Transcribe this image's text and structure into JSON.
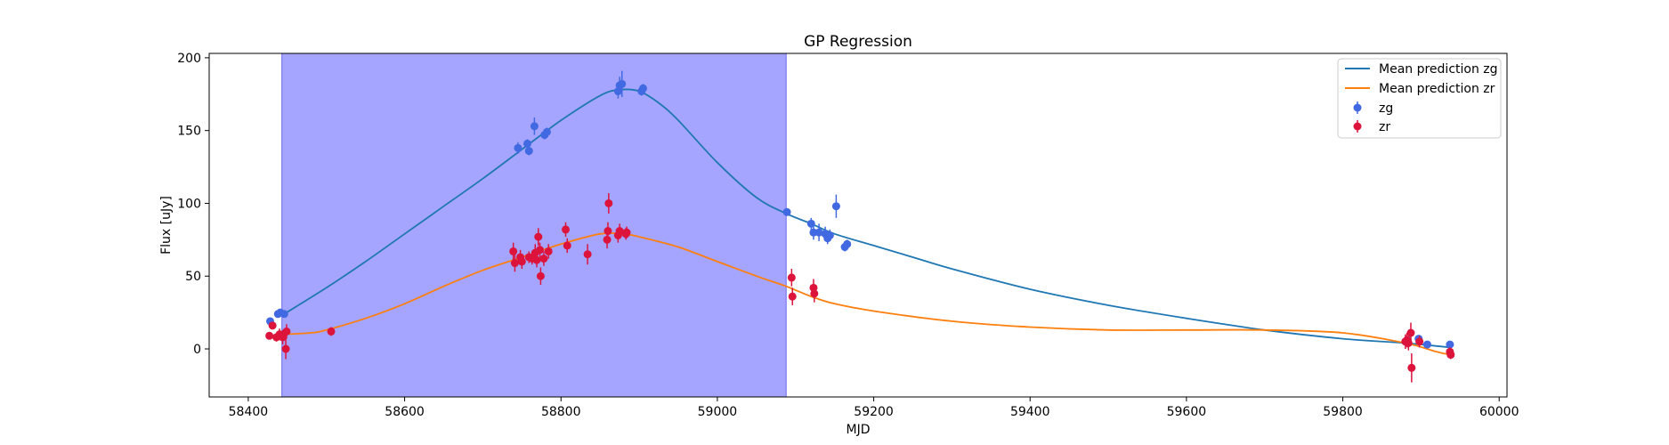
{
  "chart_data": {
    "type": "scatter",
    "title": "GP Regression",
    "xlabel": "MJD",
    "ylabel": "Flux [uJy]",
    "xlim": [
      58350,
      60010
    ],
    "ylim": [
      -33,
      203
    ],
    "xticks": [
      58400,
      58600,
      58800,
      59000,
      59200,
      59400,
      59600,
      59800,
      60000
    ],
    "yticks": [
      0,
      50,
      100,
      150,
      200
    ],
    "grid": false,
    "legend_position": "top-right",
    "shaded_region": {
      "x_start": 58443,
      "x_end": 59088,
      "color": "#a5a5ff"
    },
    "lines": [
      {
        "name": "Mean prediction zg",
        "color": "#1f77b4",
        "x": [
          58443,
          58500,
          58550,
          58600,
          58650,
          58700,
          58750,
          58800,
          58850,
          58875,
          58900,
          58925,
          58950,
          59000,
          59050,
          59088,
          59120,
          59150,
          59200,
          59250,
          59300,
          59400,
          59500,
          59600,
          59700,
          59800,
          59880,
          59920,
          59937
        ],
        "y": [
          23,
          42,
          60,
          79,
          98,
          117,
          137,
          157,
          174,
          178,
          177,
          169,
          157,
          128,
          104,
          93,
          86,
          79,
          71,
          63,
          55,
          41,
          30,
          21,
          13,
          7,
          4,
          2,
          1
        ]
      },
      {
        "name": "Mean prediction zr",
        "color": "#ff7f0e",
        "x": [
          58443,
          58480,
          58500,
          58550,
          58600,
          58650,
          58700,
          58750,
          58800,
          58850,
          58880,
          58900,
          58950,
          59000,
          59050,
          59088,
          59120,
          59150,
          59200,
          59300,
          59400,
          59500,
          59600,
          59700,
          59800,
          59880,
          59920,
          59937
        ],
        "y": [
          10,
          11,
          13,
          21,
          31,
          43,
          54,
          63,
          72,
          79,
          79,
          77,
          70,
          60,
          50,
          43,
          36,
          31,
          26,
          19,
          15,
          13,
          13,
          13,
          11,
          4,
          -2,
          -4
        ]
      }
    ],
    "series": [
      {
        "name": "zg",
        "color": "#4169e1",
        "points": [
          {
            "x": 58428,
            "y": 19,
            "err": 1
          },
          {
            "x": 58438,
            "y": 24,
            "err": 2
          },
          {
            "x": 58441,
            "y": 25,
            "err": 2
          },
          {
            "x": 58446,
            "y": 24,
            "err": 2
          },
          {
            "x": 58745,
            "y": 138,
            "err": 4
          },
          {
            "x": 58757,
            "y": 141,
            "err": 3
          },
          {
            "x": 58759,
            "y": 136,
            "err": 3
          },
          {
            "x": 58766,
            "y": 153,
            "err": 6
          },
          {
            "x": 58779,
            "y": 147,
            "err": 3
          },
          {
            "x": 58782,
            "y": 149,
            "err": 3
          },
          {
            "x": 58873,
            "y": 177,
            "err": 5
          },
          {
            "x": 58875,
            "y": 181,
            "err": 6
          },
          {
            "x": 58878,
            "y": 182,
            "err": 9
          },
          {
            "x": 58903,
            "y": 177,
            "err": 3
          },
          {
            "x": 58905,
            "y": 179,
            "err": 3
          },
          {
            "x": 59089,
            "y": 94,
            "err": 2
          },
          {
            "x": 59120,
            "y": 86,
            "err": 4
          },
          {
            "x": 59123,
            "y": 80,
            "err": 5
          },
          {
            "x": 59130,
            "y": 80,
            "err": 6
          },
          {
            "x": 59138,
            "y": 79,
            "err": 5
          },
          {
            "x": 59141,
            "y": 76,
            "err": 4
          },
          {
            "x": 59144,
            "y": 78,
            "err": 4
          },
          {
            "x": 59152,
            "y": 98,
            "err": 8
          },
          {
            "x": 59163,
            "y": 70,
            "err": 3
          },
          {
            "x": 59166,
            "y": 72,
            "err": 3
          },
          {
            "x": 59883,
            "y": 6,
            "err": 2
          },
          {
            "x": 59897,
            "y": 7,
            "err": 2
          },
          {
            "x": 59908,
            "y": 3,
            "err": 2
          },
          {
            "x": 59937,
            "y": 3,
            "err": 2
          }
        ]
      },
      {
        "name": "zr",
        "color": "#dc143c",
        "points": [
          {
            "x": 58427,
            "y": 9,
            "err": 2
          },
          {
            "x": 58431,
            "y": 16,
            "err": 2
          },
          {
            "x": 58436,
            "y": 8,
            "err": 3
          },
          {
            "x": 58440,
            "y": 10,
            "err": 4
          },
          {
            "x": 58444,
            "y": 8,
            "err": 5
          },
          {
            "x": 58448,
            "y": 0,
            "err": 7
          },
          {
            "x": 58449,
            "y": 12,
            "err": 5
          },
          {
            "x": 58506,
            "y": 12,
            "err": 3
          },
          {
            "x": 58739,
            "y": 67,
            "err": 6
          },
          {
            "x": 58741,
            "y": 59,
            "err": 6
          },
          {
            "x": 58748,
            "y": 63,
            "err": 5
          },
          {
            "x": 58750,
            "y": 60,
            "err": 5
          },
          {
            "x": 58759,
            "y": 63,
            "err": 4
          },
          {
            "x": 58763,
            "y": 62,
            "err": 4
          },
          {
            "x": 58767,
            "y": 66,
            "err": 6
          },
          {
            "x": 58769,
            "y": 61,
            "err": 5
          },
          {
            "x": 58771,
            "y": 77,
            "err": 6
          },
          {
            "x": 58773,
            "y": 68,
            "err": 5
          },
          {
            "x": 58774,
            "y": 50,
            "err": 6
          },
          {
            "x": 58778,
            "y": 62,
            "err": 5
          },
          {
            "x": 58784,
            "y": 67,
            "err": 5
          },
          {
            "x": 58806,
            "y": 82,
            "err": 5
          },
          {
            "x": 58808,
            "y": 71,
            "err": 5
          },
          {
            "x": 58834,
            "y": 65,
            "err": 7
          },
          {
            "x": 58859,
            "y": 75,
            "err": 6
          },
          {
            "x": 58860,
            "y": 81,
            "err": 6
          },
          {
            "x": 58861,
            "y": 100,
            "err": 7
          },
          {
            "x": 58873,
            "y": 78,
            "err": 5
          },
          {
            "x": 58875,
            "y": 81,
            "err": 5
          },
          {
            "x": 58883,
            "y": 79,
            "err": 4
          },
          {
            "x": 58884,
            "y": 80,
            "err": 4
          },
          {
            "x": 59095,
            "y": 49,
            "err": 6
          },
          {
            "x": 59096,
            "y": 36,
            "err": 6
          },
          {
            "x": 59123,
            "y": 42,
            "err": 6
          },
          {
            "x": 59124,
            "y": 38,
            "err": 6
          },
          {
            "x": 59880,
            "y": 5,
            "err": 5
          },
          {
            "x": 59882,
            "y": 6,
            "err": 5
          },
          {
            "x": 59884,
            "y": 4,
            "err": 5
          },
          {
            "x": 59887,
            "y": 11,
            "err": 7
          },
          {
            "x": 59888,
            "y": -13,
            "err": 10
          },
          {
            "x": 59898,
            "y": 5,
            "err": 4
          },
          {
            "x": 59937,
            "y": -2,
            "err": 3
          },
          {
            "x": 59938,
            "y": -4,
            "err": 3
          }
        ]
      }
    ]
  }
}
